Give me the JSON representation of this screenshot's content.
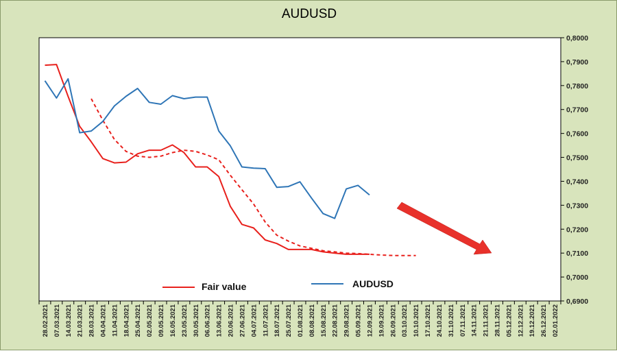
{
  "chart_data": {
    "type": "line",
    "title": "AUDUSD",
    "ylim": [
      0.69,
      0.8
    ],
    "y_ticks": [
      "0,8000",
      "0,7900",
      "0,7800",
      "0,7700",
      "0,7600",
      "0,7500",
      "0,7400",
      "0,7300",
      "0,7200",
      "0,7100",
      "0,7000",
      "0,6900"
    ],
    "y_tick_values": [
      0.8,
      0.79,
      0.78,
      0.77,
      0.76,
      0.75,
      0.74,
      0.73,
      0.72,
      0.71,
      0.7,
      0.69
    ],
    "x_categories": [
      "28.02.2021",
      "07.03.2021",
      "14.03.2021",
      "21.03.2021",
      "28.03.2021",
      "04.04.2021",
      "11.04.2021",
      "18.04.2021",
      "25.04.2021",
      "02.05.2021",
      "09.05.2021",
      "16.05.2021",
      "23.05.2021",
      "30.05.2021",
      "06.06.2021",
      "13.06.2021",
      "20.06.2021",
      "27.06.2021",
      "04.07.2021",
      "11.07.2021",
      "18.07.2021",
      "25.07.2021",
      "01.08.2021",
      "08.08.2021",
      "15.08.2021",
      "22.08.2021",
      "29.08.2021",
      "05.09.2021",
      "12.09.2021",
      "19.09.2021",
      "26.09.2021",
      "03.10.2021",
      "10.10.2021",
      "17.10.2021",
      "24.10.2021",
      "31.10.2021",
      "07.11.2021",
      "14.11.2021",
      "21.11.2021",
      "28.11.2021",
      "05.12.2021",
      "12.12.2021",
      "19.12.2021",
      "26.12.2021",
      "02.01.2022"
    ],
    "grid": "none",
    "legend_placement": "bottom-left inside plot",
    "series": [
      {
        "name": "Fair value",
        "color": "#e8201c",
        "style": "solid",
        "start_index": 0,
        "values": [
          0.7885,
          0.7888,
          0.7755,
          0.763,
          0.7565,
          0.7495,
          0.7477,
          0.748,
          0.7515,
          0.753,
          0.753,
          0.7552,
          0.752,
          0.746,
          0.746,
          0.742,
          0.7295,
          0.722,
          0.7205,
          0.7155,
          0.714,
          0.7115,
          0.7115,
          0.7115,
          0.7105,
          0.71,
          0.7095,
          0.7095,
          0.7095
        ]
      },
      {
        "name": "",
        "color": "#e8201c",
        "style": "dashed",
        "start_index": 4,
        "values": [
          0.7745,
          0.7655,
          0.7575,
          0.7525,
          0.7505,
          0.75,
          0.7505,
          0.752,
          0.753,
          0.7525,
          0.751,
          0.749,
          0.7425,
          0.7365,
          0.7305,
          0.723,
          0.7175,
          0.715,
          0.713,
          0.712,
          0.711,
          0.7105,
          0.71,
          0.7098,
          0.7095,
          0.7092,
          0.709,
          0.709,
          0.709
        ]
      },
      {
        "name": "AUDUSD",
        "color": "#2e75b6",
        "style": "solid",
        "start_index": 0,
        "values": [
          0.782,
          0.7748,
          0.7828,
          0.7603,
          0.761,
          0.765,
          0.7715,
          0.7755,
          0.7788,
          0.773,
          0.7722,
          0.7758,
          0.7745,
          0.7752,
          0.7752,
          0.761,
          0.7548,
          0.746,
          0.7455,
          0.7453,
          0.7375,
          0.7378,
          0.7398,
          0.733,
          0.7265,
          0.7245,
          0.7368,
          0.7383,
          0.7343
        ]
      }
    ],
    "annotations": [
      {
        "type": "arrow",
        "color": "#e8312b",
        "meaning": "downward trend"
      }
    ]
  }
}
